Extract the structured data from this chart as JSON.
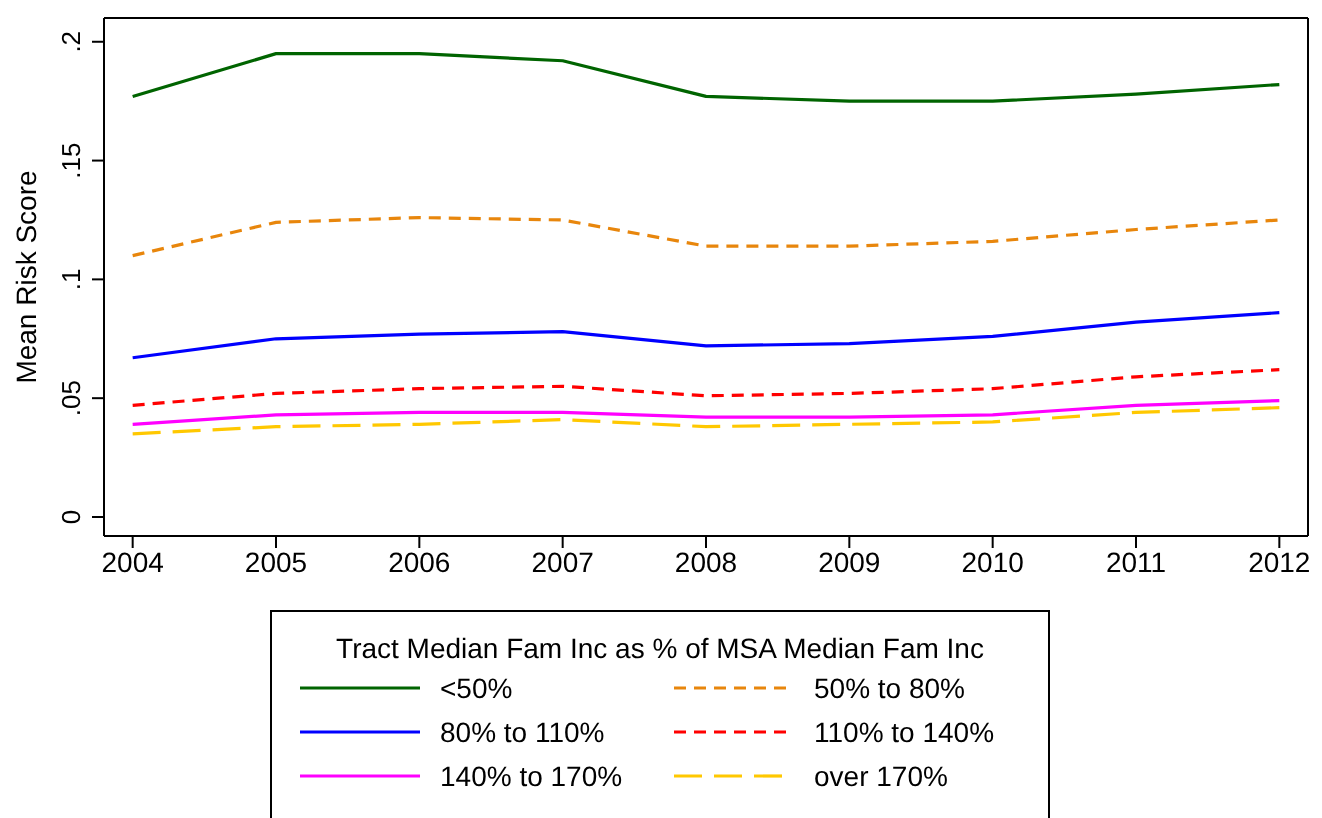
{
  "chart_data": {
    "type": "line",
    "ylabel": "Mean Risk Score",
    "legend_title": "Tract Median Fam Inc as % of MSA Median Fam Inc",
    "legend": "bottom",
    "grid": false,
    "x": [
      2004,
      2005,
      2006,
      2007,
      2008,
      2009,
      2010,
      2011,
      2012
    ],
    "xlim": [
      2003.8,
      2012.2
    ],
    "xticks": [
      2004,
      2005,
      2006,
      2007,
      2008,
      2009,
      2010,
      2011,
      2012
    ],
    "ylim": [
      -0.008,
      0.21
    ],
    "yticks": [
      {
        "value": 0,
        "label": "0"
      },
      {
        "value": 0.05,
        "label": ".05"
      },
      {
        "value": 0.1,
        "label": ".1"
      },
      {
        "value": 0.15,
        "label": ".15"
      },
      {
        "value": 0.2,
        "label": ".2"
      }
    ],
    "series": [
      {
        "name": "<50%",
        "color": "#006400",
        "line_style": "solid",
        "values": [
          0.177,
          0.195,
          0.195,
          0.192,
          0.177,
          0.175,
          0.175,
          0.178,
          0.182
        ]
      },
      {
        "name": "50% to 80%",
        "color": "#e8860c",
        "line_style": "dashed",
        "values": [
          0.11,
          0.124,
          0.126,
          0.125,
          0.114,
          0.114,
          0.116,
          0.121,
          0.125
        ]
      },
      {
        "name": "80% to 110%",
        "color": "#0000ff",
        "line_style": "solid",
        "values": [
          0.067,
          0.075,
          0.077,
          0.078,
          0.072,
          0.073,
          0.076,
          0.082,
          0.086
        ]
      },
      {
        "name": "110% to 140%",
        "color": "#ff0000",
        "line_style": "dashed",
        "values": [
          0.047,
          0.052,
          0.054,
          0.055,
          0.051,
          0.052,
          0.054,
          0.059,
          0.062
        ]
      },
      {
        "name": "140% to 170%",
        "color": "#ff00ff",
        "line_style": "solid",
        "values": [
          0.039,
          0.043,
          0.044,
          0.044,
          0.042,
          0.042,
          0.043,
          0.047,
          0.049
        ]
      },
      {
        "name": "over 170%",
        "color": "#ffc800",
        "line_style": "longdash",
        "values": [
          0.035,
          0.038,
          0.039,
          0.041,
          0.038,
          0.039,
          0.04,
          0.044,
          0.046
        ]
      }
    ]
  }
}
